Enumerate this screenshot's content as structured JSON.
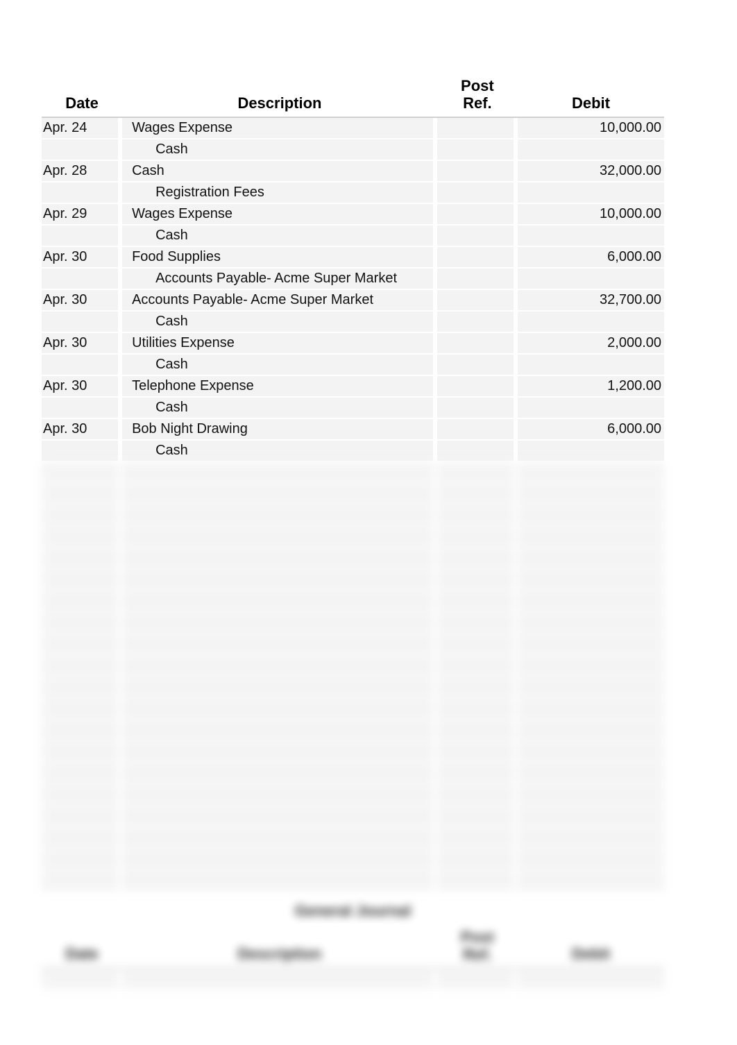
{
  "columns": {
    "date": "Date",
    "desc": "Description",
    "post1": "Post",
    "post2": "Ref.",
    "debit": "Debit"
  },
  "entries": [
    {
      "date": "Apr. 24",
      "desc": "Wages Expense",
      "indent": false,
      "debit": "10,000.00"
    },
    {
      "date": "",
      "desc": "Cash",
      "indent": true,
      "debit": ""
    },
    {
      "date": "Apr. 28",
      "desc": "Cash",
      "indent": false,
      "debit": "32,000.00"
    },
    {
      "date": "",
      "desc": "Registration Fees",
      "indent": true,
      "debit": ""
    },
    {
      "date": "Apr. 29",
      "desc": "Wages Expense",
      "indent": false,
      "debit": "10,000.00"
    },
    {
      "date": "",
      "desc": "Cash",
      "indent": true,
      "debit": ""
    },
    {
      "date": "Apr. 30",
      "desc": "Food Supplies",
      "indent": false,
      "debit": "6,000.00"
    },
    {
      "date": "",
      "desc": "Accounts Payable- Acme Super Market",
      "indent": true,
      "debit": ""
    },
    {
      "date": "Apr. 30",
      "desc": "Accounts Payable- Acme Super Market",
      "indent": false,
      "debit": "32,700.00"
    },
    {
      "date": "",
      "desc": "Cash",
      "indent": true,
      "debit": ""
    },
    {
      "date": "Apr. 30",
      "desc": "Utilities Expense",
      "indent": false,
      "debit": "2,000.00"
    },
    {
      "date": "",
      "desc": "Cash",
      "indent": true,
      "debit": ""
    },
    {
      "date": "Apr. 30",
      "desc": "Telephone Expense",
      "indent": false,
      "debit": "1,200.00"
    },
    {
      "date": "",
      "desc": "Cash",
      "indent": true,
      "debit": ""
    },
    {
      "date": "Apr. 30",
      "desc": "Bob Night Drawing",
      "indent": false,
      "debit": "6,000.00"
    },
    {
      "date": "",
      "desc": "Cash",
      "indent": true,
      "debit": ""
    }
  ],
  "blank_rows_after": 20,
  "section2_title": "General Journal",
  "styling": {
    "row_bg": "#f3f3f3",
    "row_gap_color": "#ffffff",
    "header_border": "#d0d0d0",
    "font_family": "Arial",
    "header_fontsize_pt": 16,
    "body_fontsize_pt": 15
  }
}
